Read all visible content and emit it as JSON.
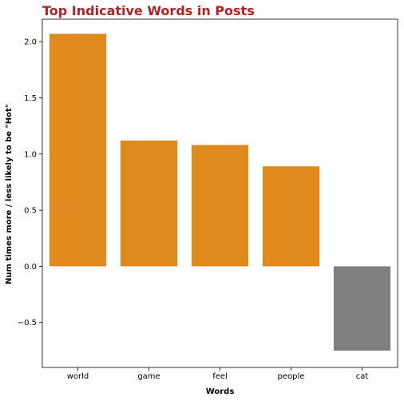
{
  "chart_data": {
    "type": "bar",
    "title": "Top Indicative Words in Posts",
    "xlabel": "Words",
    "ylabel": "Num times more / less likely to be \"Hot\"",
    "categories": [
      "world",
      "game",
      "feel",
      "people",
      "cat"
    ],
    "values": [
      2.07,
      1.12,
      1.08,
      0.89,
      -0.75
    ],
    "ylim": [
      -0.9,
      2.2
    ],
    "yticks": [
      -0.5,
      0.0,
      0.5,
      1.0,
      1.5,
      2.0
    ],
    "ytick_labels": [
      "−0.5",
      "0.0",
      "0.5",
      "1.0",
      "1.5",
      "2.0"
    ],
    "grid": false,
    "legend": "none",
    "colors": {
      "title": "#b22222",
      "positive": "#e08a1e",
      "negative": "#808080",
      "axis": "#000000"
    }
  }
}
